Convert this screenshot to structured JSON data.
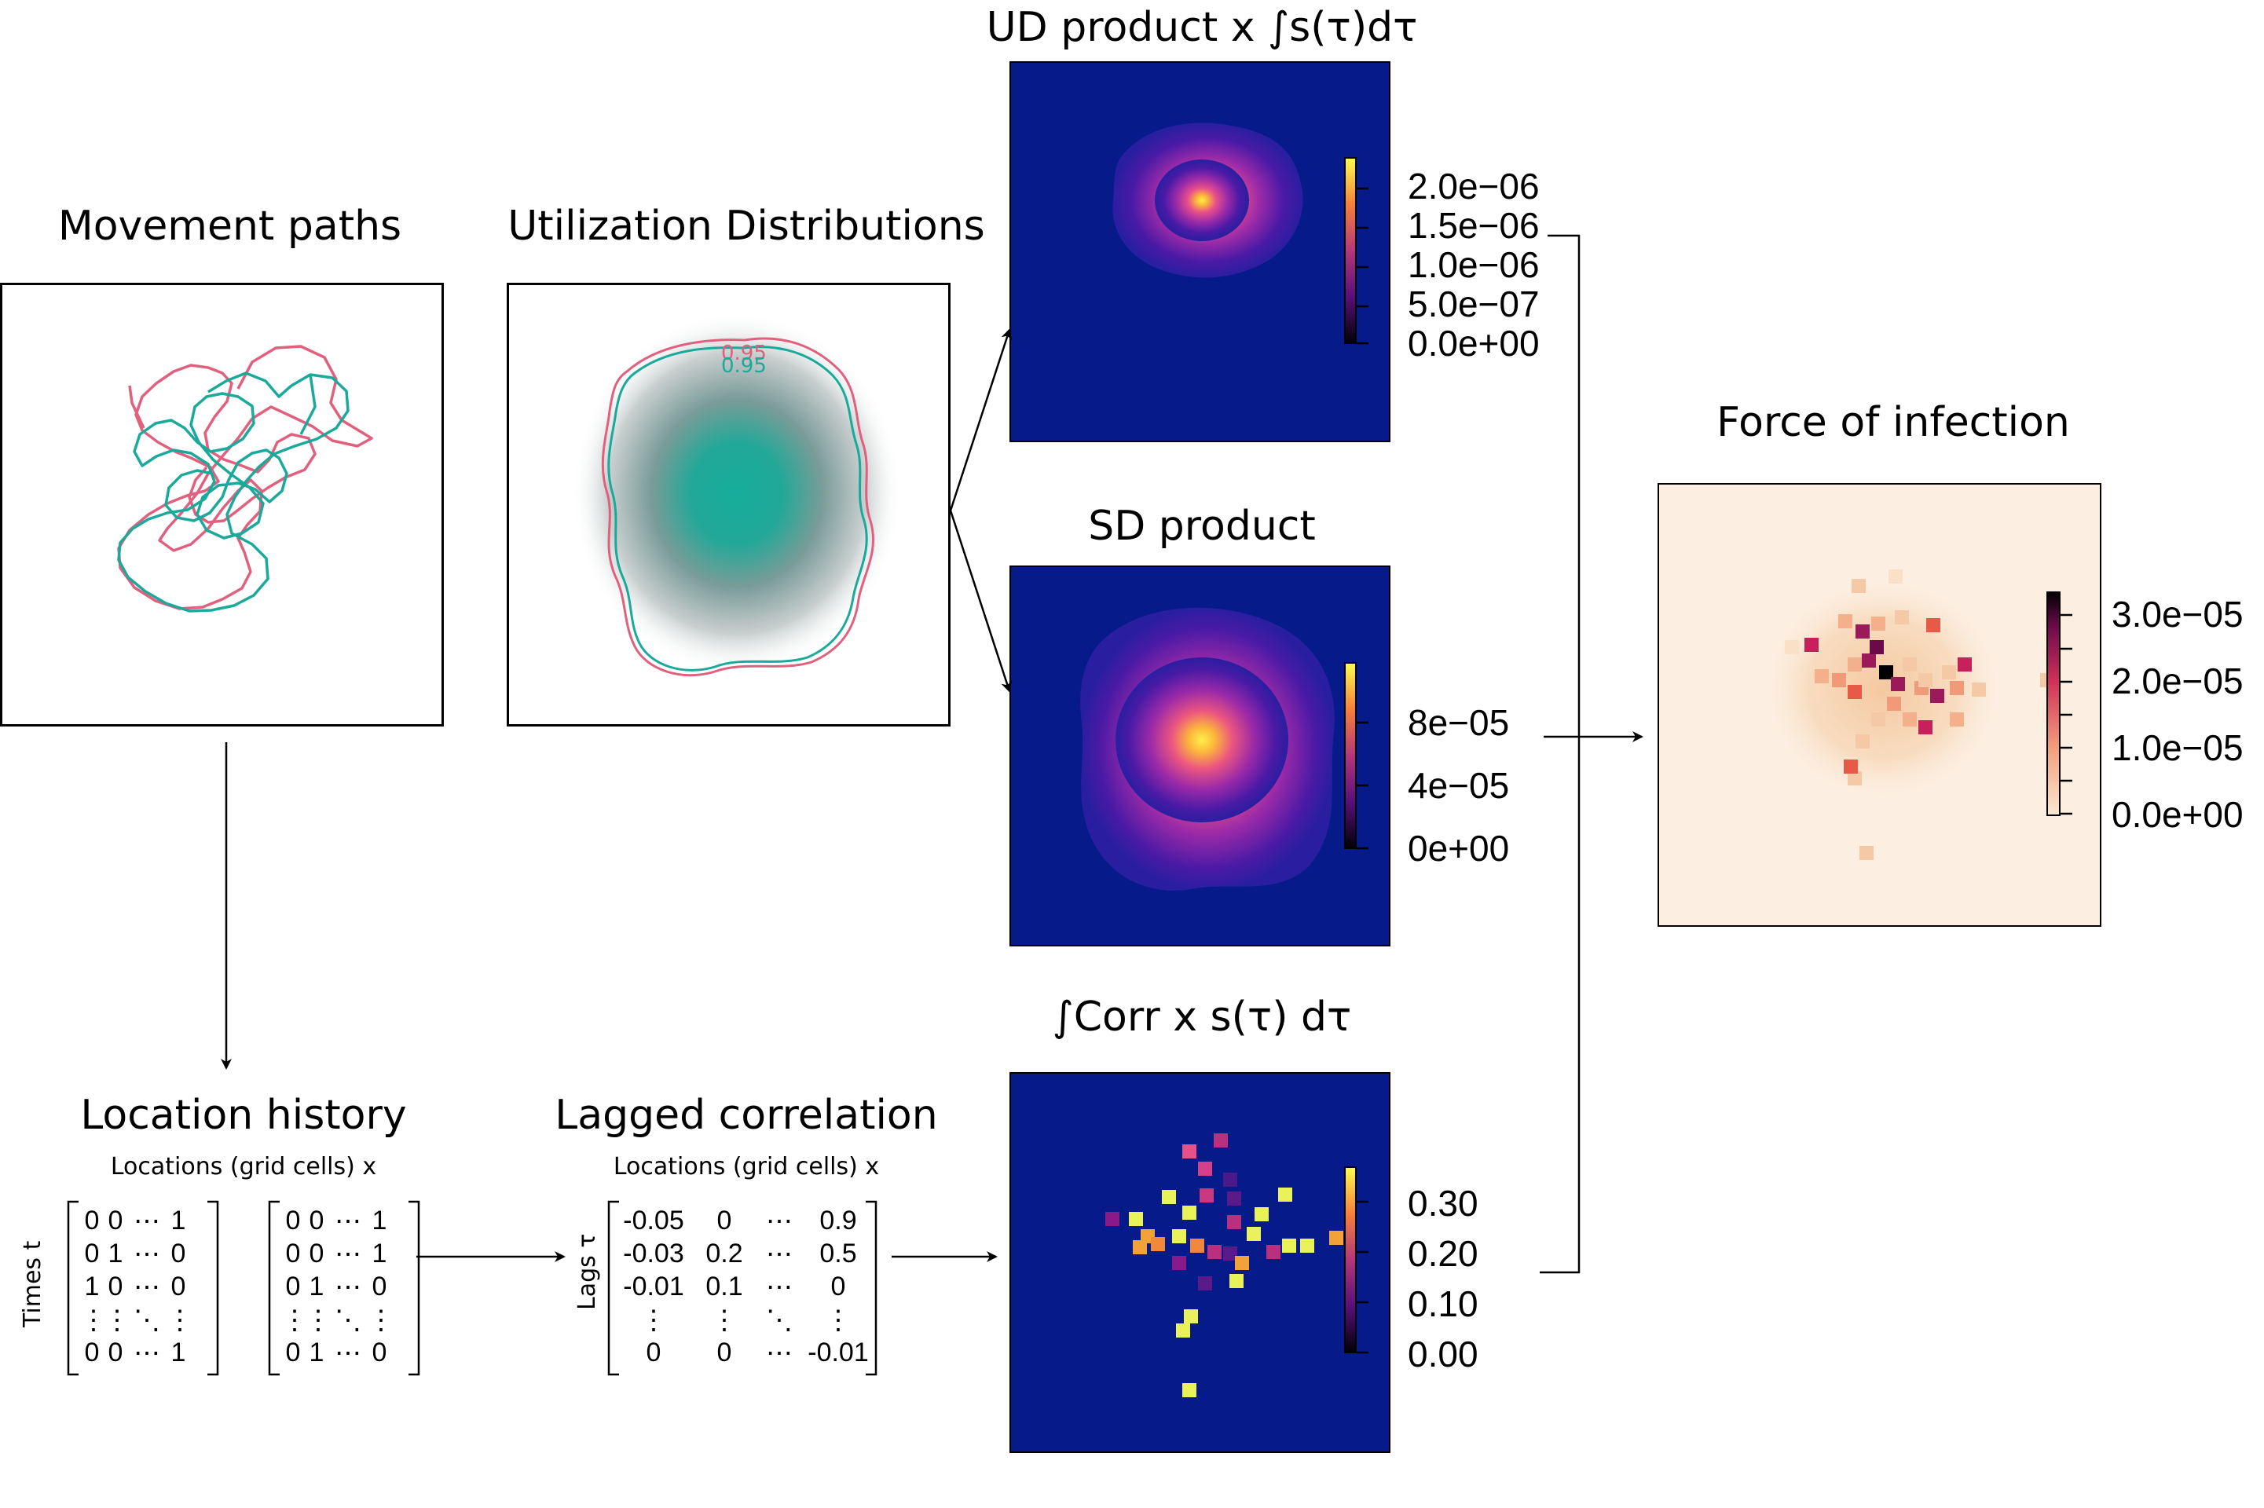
{
  "panels": {
    "movement_paths": {
      "title": "Movement paths"
    },
    "utilization": {
      "title": "Utilization Distributions",
      "contour_labels": [
        "0.95",
        "0.95"
      ]
    },
    "ud_product": {
      "title": "UD product x ∫s(τ)dτ",
      "colorbar_ticks": [
        "2.0e−06",
        "1.5e−06",
        "1.0e−06",
        "5.0e−07",
        "0.0e+00"
      ]
    },
    "sd_product": {
      "title": "SD product",
      "colorbar_ticks": [
        "8e−05",
        "4e−05",
        "0e+00"
      ]
    },
    "corr": {
      "title": "∫Corr x s(τ) dτ",
      "colorbar_ticks": [
        "0.30",
        "0.20",
        "0.10",
        "0.00"
      ]
    },
    "foi": {
      "title": "Force of infection",
      "colorbar_ticks": [
        "3.0e−05",
        "2.0e−05",
        "1.0e−05",
        "0.0e+00"
      ]
    },
    "location_history": {
      "title": "Location history",
      "subtitle": "Locations (grid cells) x",
      "ylabel": "Times t",
      "matrix1": [
        [
          "0",
          "0",
          "⋯",
          "1"
        ],
        [
          "0",
          "1",
          "⋯",
          "0"
        ],
        [
          "1",
          "0",
          "⋯",
          "0"
        ],
        [
          "⋮",
          "⋮",
          "⋱",
          "⋮"
        ],
        [
          "0",
          "0",
          "⋯",
          "1"
        ]
      ],
      "matrix2": [
        [
          "0",
          "0",
          "⋯",
          "1"
        ],
        [
          "0",
          "0",
          "⋯",
          "1"
        ],
        [
          "0",
          "1",
          "⋯",
          "0"
        ],
        [
          "⋮",
          "⋮",
          "⋱",
          "⋮"
        ],
        [
          "0",
          "1",
          "⋯",
          "0"
        ]
      ]
    },
    "lagged_correlation": {
      "title": "Lagged correlation",
      "subtitle": "Locations (grid cells) x",
      "ylabel": "Lags τ",
      "matrix": [
        [
          "-0.05",
          "0",
          "⋯",
          "0.9"
        ],
        [
          "-0.03",
          "0.2",
          "⋯",
          "0.5"
        ],
        [
          "-0.01",
          "0.1",
          "⋯",
          "0"
        ],
        [
          "⋮",
          "⋮",
          "⋱",
          "⋮"
        ],
        [
          "0",
          "0",
          "⋯",
          "-0.01"
        ]
      ]
    }
  },
  "colors": {
    "path_pink": "#e0607e",
    "path_teal": "#1aa99b",
    "heat_bg": "#061a8a"
  }
}
